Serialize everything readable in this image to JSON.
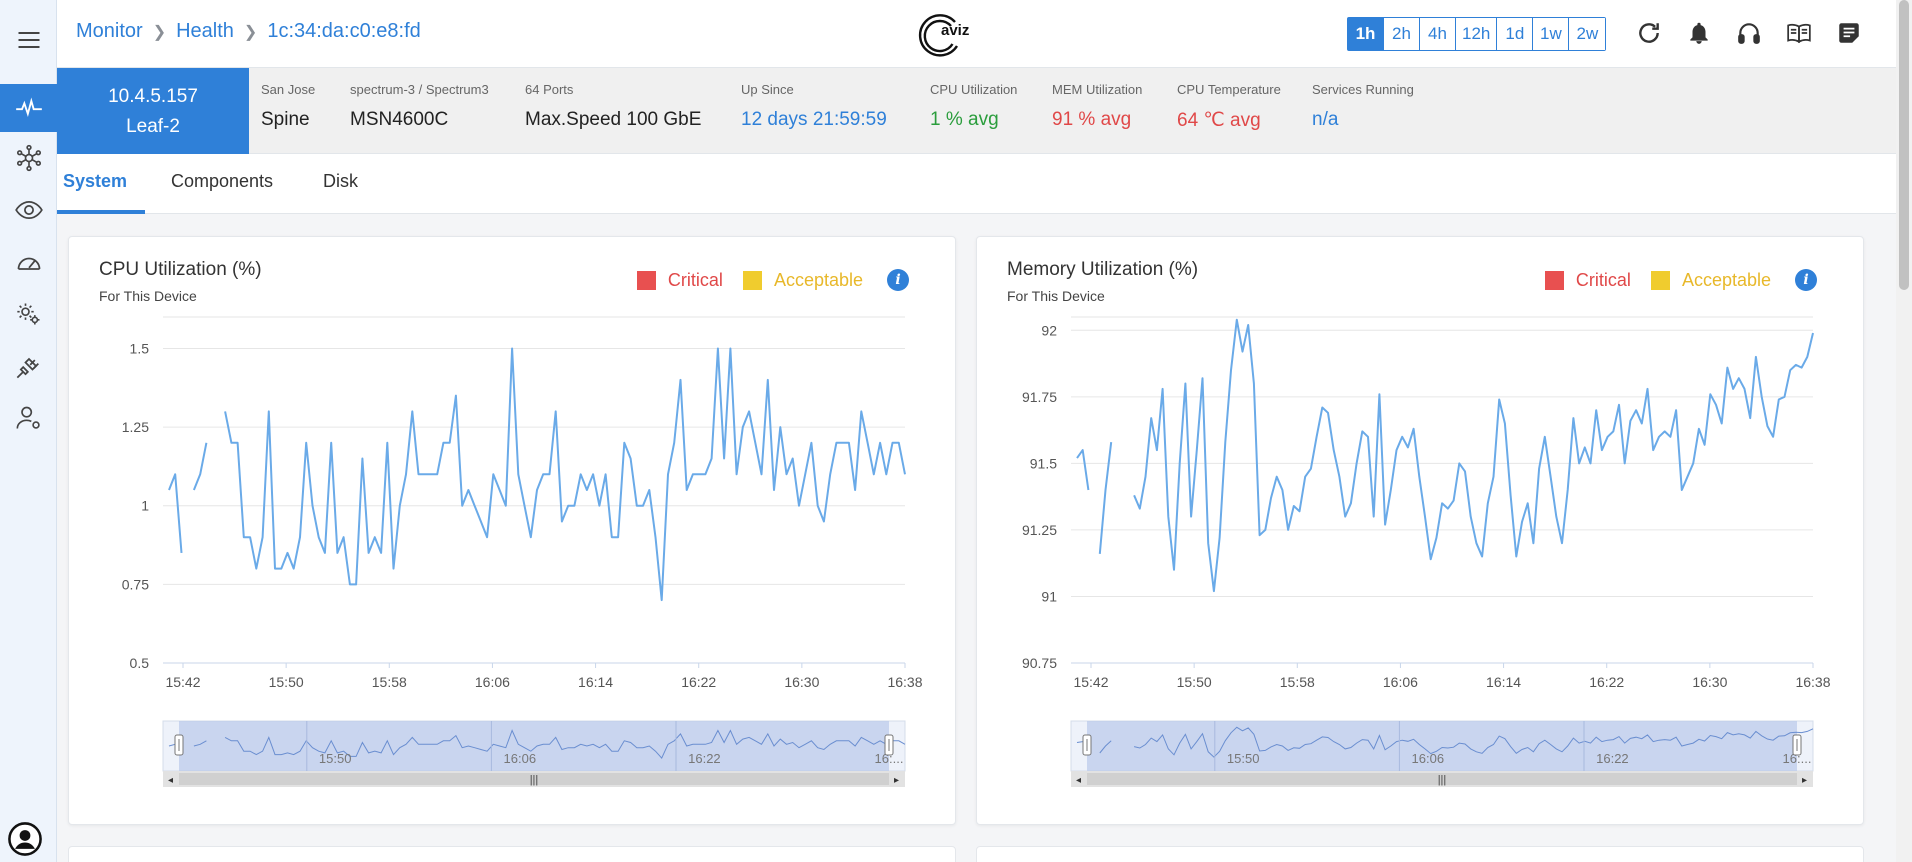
{
  "breadcrumb": {
    "items": [
      "Monitor",
      "Health",
      "1c:34:da:c0:e8:fd"
    ]
  },
  "logo": {
    "text": "aviz"
  },
  "time_ranges": {
    "options": [
      "1h",
      "2h",
      "4h",
      "12h",
      "1d",
      "1w",
      "2w"
    ],
    "selected": "1h"
  },
  "header_icons": [
    "refresh-icon",
    "bell-icon",
    "headset-icon",
    "book-icon",
    "notes-icon"
  ],
  "device": {
    "ip": "10.4.5.157",
    "name": "Leaf-2",
    "info": [
      {
        "label": "San Jose",
        "value": "Spine",
        "color": "default"
      },
      {
        "label": "spectrum-3 / Spectrum3",
        "value": "MSN4600C",
        "color": "default"
      },
      {
        "label": "64 Ports",
        "value": "Max.Speed 100 GbE",
        "color": "default"
      },
      {
        "label": "Up Since",
        "value": "12 days 21:59:59",
        "color": "blue"
      },
      {
        "label": "CPU Utilization",
        "value": "1 % avg",
        "color": "green"
      },
      {
        "label": "MEM Utilization",
        "value": "91 % avg",
        "color": "red"
      },
      {
        "label": "CPU Temperature",
        "value": "64 ℃ avg",
        "color": "red"
      },
      {
        "label": "Services Running",
        "value": "n/a",
        "color": "blue"
      }
    ]
  },
  "tabs": [
    {
      "label": "System",
      "active": true
    },
    {
      "label": "Components",
      "active": false
    },
    {
      "label": "Disk",
      "active": false
    }
  ],
  "legend": {
    "critical": "Critical",
    "acceptable": "Acceptable",
    "critical_color": "#e85050",
    "acceptable_color": "#f0cc2e"
  },
  "colors": {
    "accent": "#2f80d8",
    "line": "#6aaae8"
  },
  "chart_data": [
    {
      "type": "line",
      "title": "CPU Utilization (%)",
      "subtitle": "For This Device",
      "ylim": [
        0.5,
        1.6
      ],
      "yticks": [
        0.5,
        0.75,
        1,
        1.25,
        1.5
      ],
      "ytick_labels": [
        "0.5",
        "0.75",
        "1",
        "1.25",
        "1.5"
      ],
      "xtick_labels": [
        "15:42",
        "15:50",
        "15:58",
        "16:06",
        "16:14",
        "16:22",
        "16:30",
        "16:38"
      ],
      "zoom_labels": [
        "15:50",
        "16:06",
        "16:22",
        "16:..."
      ],
      "grid": true,
      "series": [
        {
          "values": [
            1.05,
            1.1,
            0.85,
            null,
            1.05,
            1.1,
            1.2,
            null,
            null,
            1.3,
            1.2,
            1.2,
            0.9,
            0.9,
            0.8,
            0.9,
            1.3,
            0.8,
            0.8,
            0.85,
            0.8,
            0.9,
            1.2,
            1.0,
            0.9,
            0.85,
            1.2,
            0.85,
            0.9,
            0.75,
            0.75,
            1.15,
            0.85,
            0.9,
            0.85,
            1.2,
            0.8,
            1.0,
            1.1,
            1.3,
            1.1,
            1.1,
            1.1,
            1.1,
            1.2,
            1.2,
            1.35,
            1.0,
            1.05,
            1.0,
            0.95,
            0.9,
            1.1,
            1.05,
            1.0,
            1.5,
            1.1,
            1.0,
            0.9,
            1.05,
            1.1,
            1.1,
            1.3,
            0.95,
            1.0,
            1.0,
            1.1,
            1.05,
            1.1,
            1.0,
            1.1,
            0.9,
            0.9,
            1.2,
            1.15,
            1.0,
            1.0,
            1.05,
            0.9,
            0.7,
            1.1,
            1.2,
            1.4,
            1.05,
            1.1,
            1.1,
            1.1,
            1.15,
            1.5,
            1.15,
            1.5,
            1.1,
            1.25,
            1.3,
            1.2,
            1.1,
            1.4,
            1.05,
            1.25,
            1.1,
            1.15,
            1.0,
            1.1,
            1.2,
            1.0,
            0.95,
            1.1,
            1.2,
            1.2,
            1.2,
            1.05,
            1.3,
            1.2,
            1.1,
            1.2,
            1.1,
            1.2,
            1.2,
            1.1
          ]
        }
      ]
    },
    {
      "type": "line",
      "title": "Memory Utilization (%)",
      "subtitle": "For This Device",
      "ylim": [
        90.75,
        92.05
      ],
      "yticks": [
        90.75,
        91,
        91.25,
        91.5,
        91.75,
        92
      ],
      "ytick_labels": [
        "90.75",
        "91",
        "91.25",
        "91.5",
        "91.75",
        "92"
      ],
      "xtick_labels": [
        "15:42",
        "15:50",
        "15:58",
        "16:06",
        "16:14",
        "16:22",
        "16:30",
        "16:38"
      ],
      "zoom_labels": [
        "15:50",
        "16:06",
        "16:22",
        "16:..."
      ],
      "grid": true,
      "series": [
        {
          "values": [
            91.52,
            91.55,
            91.4,
            null,
            91.16,
            91.4,
            91.58,
            null,
            null,
            null,
            91.38,
            91.33,
            91.45,
            91.67,
            91.55,
            91.78,
            91.3,
            91.1,
            91.5,
            91.8,
            91.3,
            91.55,
            91.82,
            91.2,
            91.02,
            91.22,
            91.58,
            91.85,
            92.04,
            91.92,
            92.02,
            91.8,
            91.23,
            91.25,
            91.37,
            91.45,
            91.4,
            91.25,
            91.34,
            91.32,
            91.45,
            91.48,
            91.6,
            91.71,
            91.69,
            91.55,
            91.45,
            91.3,
            91.35,
            91.5,
            91.62,
            91.6,
            91.3,
            91.76,
            91.27,
            91.4,
            91.55,
            91.6,
            91.56,
            91.63,
            91.45,
            91.3,
            91.14,
            91.22,
            91.35,
            91.33,
            91.36,
            91.5,
            91.47,
            91.3,
            91.2,
            91.15,
            91.35,
            91.45,
            91.74,
            91.65,
            91.38,
            91.15,
            91.28,
            91.35,
            91.2,
            91.48,
            91.6,
            91.45,
            91.3,
            91.2,
            91.4,
            91.67,
            91.5,
            91.56,
            91.5,
            91.7,
            91.55,
            91.6,
            91.62,
            91.72,
            91.5,
            91.66,
            91.7,
            91.65,
            91.78,
            91.55,
            91.6,
            91.62,
            91.6,
            91.7,
            91.4,
            91.45,
            91.5,
            91.63,
            91.57,
            91.76,
            91.72,
            91.65,
            91.86,
            91.78,
            91.82,
            91.78,
            91.67,
            91.9,
            91.75,
            91.64,
            91.6,
            91.74,
            91.75,
            91.85,
            91.87,
            91.86,
            91.9,
            91.99
          ]
        }
      ]
    }
  ]
}
